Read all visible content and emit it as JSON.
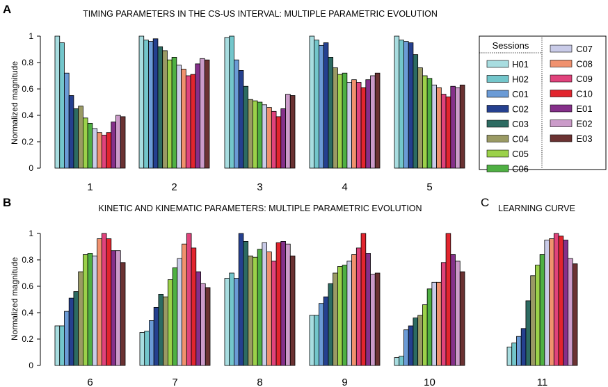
{
  "panels": {
    "a": {
      "letter": "A",
      "title": "TIMING PARAMETERS IN THE CS-US INTERVAL: MULTIPLE PARAMETRIC EVOLUTION",
      "ylabel": "Normalized magnitude"
    },
    "b": {
      "letter": "B",
      "title": "KINETIC AND KINEMATIC PARAMETERS: MULTIPLE PARAMETRIC EVOLUTION",
      "ylabel": "Normalized magnitude"
    },
    "c": {
      "letter": "C",
      "title": "LEARNING CURVE"
    }
  },
  "legend": {
    "title": "Sessions",
    "items": [
      {
        "name": "H01",
        "color": "#a8dde0"
      },
      {
        "name": "H02",
        "color": "#73c6cb"
      },
      {
        "name": "C01",
        "color": "#6b9bd6"
      },
      {
        "name": "C02",
        "color": "#25408f"
      },
      {
        "name": "C03",
        "color": "#2d6b62"
      },
      {
        "name": "C04",
        "color": "#9a9a64"
      },
      {
        "name": "C05",
        "color": "#9bd14a"
      },
      {
        "name": "C06",
        "color": "#4fb043"
      },
      {
        "name": "C07",
        "color": "#c9cbe8"
      },
      {
        "name": "C08",
        "color": "#f0916e"
      },
      {
        "name": "C09",
        "color": "#e0437c"
      },
      {
        "name": "C10",
        "color": "#e2252e"
      },
      {
        "name": "E01",
        "color": "#85308a"
      },
      {
        "name": "E02",
        "color": "#cb9bc9"
      },
      {
        "name": "E03",
        "color": "#6b3232"
      }
    ]
  },
  "chart_data": [
    {
      "type": "bar",
      "panel": "A",
      "title": "TIMING PARAMETERS IN THE CS-US INTERVAL: MULTIPLE PARAMETRIC EVOLUTION",
      "ylabel": "Normalized magnitude",
      "ylim": [
        0,
        1
      ],
      "yticks": [
        "0",
        "0.2",
        "0.4",
        "0.6",
        "0.8",
        "1"
      ],
      "series_names": [
        "H01",
        "H02",
        "C01",
        "C02",
        "C03",
        "C04",
        "C05",
        "C06",
        "C07",
        "C08",
        "C09",
        "C10",
        "E01",
        "E02",
        "E03"
      ],
      "groups": [
        {
          "label": "1",
          "values": [
            1.0,
            0.95,
            0.72,
            0.55,
            0.45,
            0.47,
            0.38,
            0.34,
            0.3,
            0.27,
            0.25,
            0.27,
            0.35,
            0.4,
            0.39
          ]
        },
        {
          "label": "2",
          "values": [
            1.0,
            0.97,
            0.96,
            0.98,
            0.92,
            0.89,
            0.82,
            0.84,
            0.78,
            0.75,
            0.7,
            0.71,
            0.79,
            0.83,
            0.82
          ]
        },
        {
          "label": "3",
          "values": [
            0.99,
            1.0,
            0.82,
            0.74,
            0.62,
            0.52,
            0.51,
            0.5,
            0.48,
            0.46,
            0.43,
            0.39,
            0.45,
            0.56,
            0.55
          ]
        },
        {
          "label": "4",
          "values": [
            1.0,
            0.97,
            0.93,
            0.95,
            0.84,
            0.76,
            0.71,
            0.72,
            0.65,
            0.67,
            0.65,
            0.61,
            0.67,
            0.7,
            0.72
          ]
        },
        {
          "label": "5",
          "values": [
            1.0,
            0.97,
            0.96,
            0.95,
            0.86,
            0.76,
            0.7,
            0.68,
            0.63,
            0.61,
            0.56,
            0.54,
            0.62,
            0.61,
            0.63
          ]
        }
      ]
    },
    {
      "type": "bar",
      "panel": "B",
      "title": "KINETIC AND KINEMATIC PARAMETERS: MULTIPLE PARAMETRIC EVOLUTION",
      "ylabel": "Normalized magnitude",
      "ylim": [
        0,
        1
      ],
      "yticks": [
        "0",
        "0.2",
        "0.4",
        "0.6",
        "0.8",
        "1"
      ],
      "series_names": [
        "H01",
        "H02",
        "C01",
        "C02",
        "C03",
        "C04",
        "C05",
        "C06",
        "C07",
        "C08",
        "C09",
        "C10",
        "E01",
        "E02",
        "E03"
      ],
      "groups": [
        {
          "label": "6",
          "values": [
            0.3,
            0.3,
            0.41,
            0.51,
            0.56,
            0.71,
            0.84,
            0.85,
            0.83,
            0.96,
            1.0,
            0.96,
            0.87,
            0.87,
            0.78
          ]
        },
        {
          "label": "7",
          "values": [
            0.25,
            0.26,
            0.34,
            0.44,
            0.54,
            0.52,
            0.65,
            0.74,
            0.81,
            0.92,
            1.0,
            0.89,
            0.71,
            0.62,
            0.59
          ]
        },
        {
          "label": "8",
          "values": [
            0.66,
            0.7,
            0.66,
            1.0,
            0.94,
            0.83,
            0.82,
            0.88,
            0.93,
            0.86,
            0.79,
            0.93,
            0.94,
            0.92,
            0.83
          ]
        },
        {
          "label": "9",
          "values": [
            0.38,
            0.38,
            0.47,
            0.52,
            0.62,
            0.7,
            0.75,
            0.76,
            0.79,
            0.84,
            0.89,
            1.0,
            0.85,
            0.69,
            0.7
          ]
        },
        {
          "label": "10",
          "values": [
            0.06,
            0.07,
            0.27,
            0.3,
            0.36,
            0.38,
            0.46,
            0.58,
            0.63,
            0.63,
            0.78,
            1.0,
            0.84,
            0.79,
            0.71
          ]
        }
      ]
    },
    {
      "type": "bar",
      "panel": "C",
      "title": "LEARNING CURVE",
      "ylim": [
        0,
        1
      ],
      "series_names": [
        "H01",
        "H02",
        "C01",
        "C02",
        "C03",
        "C04",
        "C05",
        "C06",
        "C07",
        "C08",
        "C09",
        "C10",
        "E01",
        "E02",
        "E03"
      ],
      "groups": [
        {
          "label": "11",
          "values": [
            0.14,
            0.17,
            0.22,
            0.28,
            0.49,
            0.68,
            0.76,
            0.84,
            0.95,
            0.96,
            1.0,
            0.98,
            0.95,
            0.81,
            0.77
          ]
        }
      ]
    }
  ]
}
